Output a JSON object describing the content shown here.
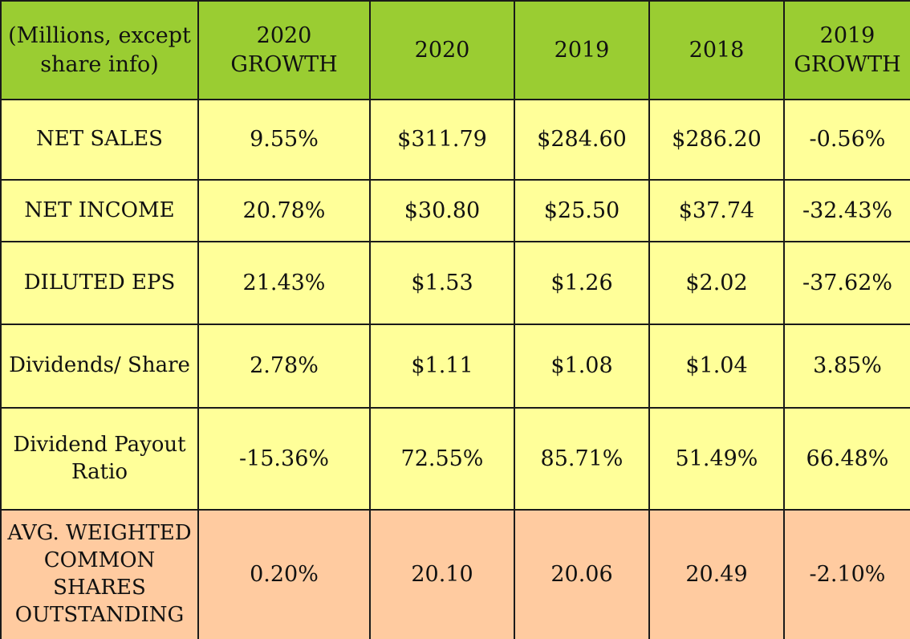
{
  "table": {
    "headers": [
      "(Millions, except share info)",
      "2020 GROWTH",
      "2020",
      "2019",
      "2018",
      "2019 GROWTH"
    ],
    "rows": [
      {
        "label": "NET SALES",
        "values": [
          "9.55%",
          "$311.79",
          "$284.60",
          "$286.20",
          "-0.56%"
        ]
      },
      {
        "label": "NET INCOME",
        "values": [
          "20.78%",
          "$30.80",
          "$25.50",
          "$37.74",
          "-32.43%"
        ]
      },
      {
        "label": "DILUTED EPS",
        "values": [
          "21.43%",
          "$1.53",
          "$1.26",
          "$2.02",
          "-37.62%"
        ]
      },
      {
        "label": "Dividends/ Share",
        "values": [
          "2.78%",
          "$1.11",
          "$1.08",
          "$1.04",
          "3.85%"
        ]
      },
      {
        "label": "Dividend Payout Ratio",
        "values": [
          "-15.36%",
          "72.55%",
          "85.71%",
          "51.49%",
          "66.48%"
        ]
      },
      {
        "label": "AVG. WEIGHTED COMMON SHARES OUTSTANDING",
        "values": [
          "0.20%",
          "20.10",
          "20.06",
          "20.49",
          "-2.10%"
        ]
      }
    ]
  },
  "colors": {
    "header_bg": "#9acd32",
    "row_bg": "#ffff99",
    "last_row_bg": "#ffcba0"
  }
}
